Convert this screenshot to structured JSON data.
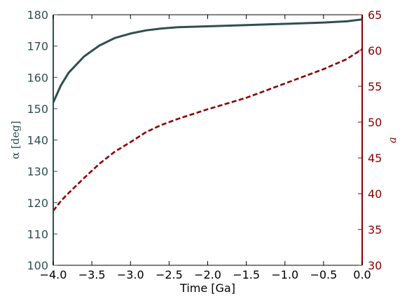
{
  "chart_data": {
    "type": "line",
    "x": [
      -4.0,
      -3.9,
      -3.8,
      -3.6,
      -3.4,
      -3.2,
      -3.0,
      -2.8,
      -2.6,
      -2.4,
      -2.0,
      -1.5,
      -1.0,
      -0.5,
      -0.2,
      0.0
    ],
    "series": [
      {
        "axis": "left",
        "style": "solid",
        "color": "#2f4f4f",
        "values": [
          152.0,
          157.5,
          161.5,
          166.7,
          170.2,
          172.6,
          174.0,
          175.0,
          175.6,
          176.0,
          176.3,
          176.7,
          177.1,
          177.5,
          177.9,
          178.5
        ]
      },
      {
        "axis": "right",
        "style": "dashed",
        "color": "#8b0000",
        "values": [
          37.6,
          39.0,
          40.1,
          42.2,
          44.2,
          45.9,
          47.2,
          48.6,
          49.6,
          50.4,
          51.8,
          53.4,
          55.4,
          57.4,
          58.8,
          60.2
        ]
      }
    ],
    "xlabel": "Time  [Ga]",
    "ylabel_left": "α [deg]",
    "ylabel_right": "a",
    "xlim": [
      -4.0,
      0.0
    ],
    "ylim_left": [
      100,
      180
    ],
    "ylim_right": [
      30,
      65
    ],
    "xticks": [
      "−4.0",
      "−3.5",
      "−3.0",
      "−2.5",
      "−2.0",
      "−1.5",
      "−1.0",
      "−0.5",
      "0.0"
    ],
    "yticks_left": [
      "100",
      "110",
      "120",
      "130",
      "140",
      "150",
      "160",
      "170",
      "180"
    ],
    "yticks_right": [
      "30",
      "35",
      "40",
      "45",
      "50",
      "55",
      "60",
      "65"
    ],
    "colors": {
      "left_axis": "#2f4f4f",
      "right_axis": "#8b0000"
    },
    "grid": false
  }
}
